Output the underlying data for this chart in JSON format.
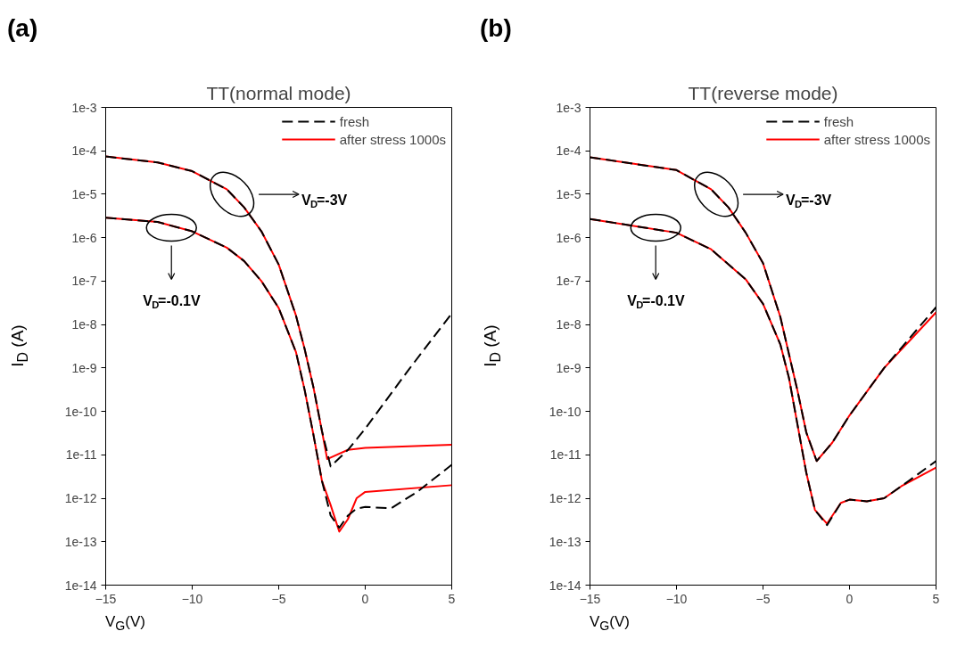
{
  "chart_data": [
    {
      "type": "line",
      "title": "TT(normal mode)",
      "xlabel": "V$_{G}$(V)",
      "ylabel": "I$_{D}$ (A)",
      "log": "y",
      "xlim": [
        -15,
        5
      ],
      "ylim": [
        1e-14,
        0.001
      ],
      "xticks": [
        -15,
        -10,
        -5,
        0,
        5
      ],
      "yticks": [
        {
          "value": 1e-14,
          "label": "1e-14"
        },
        {
          "value": 1e-13,
          "label": "1e-13"
        },
        {
          "value": 1e-12,
          "label": "1e-12"
        },
        {
          "value": 1e-11,
          "label": "1e-11"
        },
        {
          "value": 1e-10,
          "label": "1e-10"
        },
        {
          "value": 1e-09,
          "label": "1e-9"
        },
        {
          "value": 1e-08,
          "label": "1e-8"
        },
        {
          "value": 1e-07,
          "label": "1e-7"
        },
        {
          "value": 1e-06,
          "label": "1e-6"
        },
        {
          "value": 1e-05,
          "label": "1e-5"
        },
        {
          "value": 0.0001,
          "label": "1e-4"
        },
        {
          "value": 0.001,
          "label": "1e-3"
        }
      ],
      "grid": false,
      "legend": "top right",
      "annotations": [
        "(a)",
        "V$_{D}$=-3V",
        "V$_{D}$=-0.1V"
      ],
      "series": [
        {
          "name": "fresh",
          "color": "#000000",
          "line_style": "dashed",
          "x": [
            -15,
            -12,
            -10,
            -8,
            -7,
            -6,
            -5,
            -4,
            -3.5,
            -3,
            -2.5,
            -2,
            -1,
            0,
            2.5,
            5
          ],
          "values": [
            7.4e-05,
            5.4e-05,
            3.4e-05,
            1.3e-05,
            5e-06,
            1.4e-06,
            2.4e-07,
            1.6e-08,
            2.7e-09,
            3.7e-10,
            3.5e-11,
            5.4e-12,
            1.3e-11,
            4e-11,
            9e-10,
            1.8e-08
          ]
        },
        {
          "name": "after stress 1000s",
          "color": "#ff0000",
          "line_style": "solid",
          "x": [
            -15,
            -12,
            -10,
            -8,
            -7,
            -6,
            -5,
            -4,
            -3.5,
            -3,
            -2.5,
            -2.2,
            -1,
            0,
            5
          ],
          "values": [
            7.4e-05,
            5.4e-05,
            3.4e-05,
            1.3e-05,
            5e-06,
            1.4e-06,
            2.4e-07,
            1.6e-08,
            2.7e-09,
            3.7e-10,
            3.5e-11,
            8e-12,
            1.3e-11,
            1.45e-11,
            1.7e-11
          ]
        },
        {
          "color": "#000000",
          "line_style": "dashed",
          "x": [
            -15,
            -12,
            -10,
            -8,
            -7,
            -6,
            -5,
            -4,
            -3.5,
            -3,
            -2.5,
            -2,
            -1.5,
            -1,
            -0.5,
            0,
            1.5,
            3,
            5
          ],
          "values": [
            2.9e-06,
            2.3e-06,
            1.4e-06,
            5.9e-07,
            2.9e-07,
            1e-07,
            2.4e-08,
            2.3e-09,
            3.1e-10,
            3e-11,
            2.5e-12,
            4e-13,
            2.1e-13,
            4e-13,
            5.8e-13,
            6.3e-13,
            5.9e-13,
            1.4e-12,
            5.9e-12
          ]
        },
        {
          "color": "#ff0000",
          "line_style": "solid",
          "x": [
            -15,
            -12,
            -10,
            -8,
            -7,
            -6,
            -5,
            -4,
            -3.5,
            -3,
            -2.5,
            -2,
            -1.5,
            -1,
            -0.5,
            0,
            5
          ],
          "values": [
            2.9e-06,
            2.3e-06,
            1.4e-06,
            5.9e-07,
            2.9e-07,
            1e-07,
            2.4e-08,
            2.3e-09,
            3.1e-10,
            3e-11,
            2.5e-12,
            7e-13,
            1.7e-13,
            3.3e-13,
            1e-12,
            1.4e-12,
            2e-12
          ]
        }
      ]
    },
    {
      "type": "line",
      "title": "TT(reverse mode)",
      "xlabel": "V$_{G}$(V)",
      "ylabel": "I$_{D}$ (A)",
      "log": "y",
      "xlim": [
        -15,
        5
      ],
      "ylim": [
        1e-14,
        0.001
      ],
      "xticks": [
        -15,
        -10,
        -5,
        0,
        5
      ],
      "yticks": [
        {
          "value": 1e-14,
          "label": "1e-14"
        },
        {
          "value": 1e-13,
          "label": "1e-13"
        },
        {
          "value": 1e-12,
          "label": "1e-12"
        },
        {
          "value": 1e-11,
          "label": "1e-11"
        },
        {
          "value": 1e-10,
          "label": "1e-10"
        },
        {
          "value": 1e-09,
          "label": "1e-9"
        },
        {
          "value": 1e-08,
          "label": "1e-8"
        },
        {
          "value": 1e-07,
          "label": "1e-7"
        },
        {
          "value": 1e-06,
          "label": "1e-6"
        },
        {
          "value": 1e-05,
          "label": "1e-5"
        },
        {
          "value": 0.0001,
          "label": "1e-4"
        },
        {
          "value": 0.001,
          "label": "1e-3"
        }
      ],
      "grid": false,
      "legend": "top right",
      "annotations": [
        "(b)",
        "V$_{D}$=-3V",
        "V$_{D}$=-0.1V"
      ],
      "series": [
        {
          "name": "fresh",
          "color": "#000000",
          "line_style": "dashed",
          "x": [
            -15,
            -10,
            -8,
            -7,
            -6,
            -5,
            -4,
            -3,
            -2.5,
            -1.9,
            -1,
            0,
            2,
            5
          ],
          "values": [
            7.1e-05,
            3.6e-05,
            1.3e-05,
            5e-06,
            1.3e-06,
            2.6e-07,
            1.5e-08,
            2.9e-10,
            3.3e-11,
            7.2e-12,
            1.9e-11,
            8.1e-11,
            1e-09,
            2.5e-08
          ]
        },
        {
          "name": "after stress 1000s",
          "color": "#ff0000",
          "line_style": "solid",
          "x": [
            -15,
            -10,
            -8,
            -7,
            -6,
            -5,
            -4,
            -3,
            -2.5,
            -1.9,
            -1,
            0,
            2,
            5
          ],
          "values": [
            7.1e-05,
            3.6e-05,
            1.3e-05,
            5e-06,
            1.3e-06,
            2.6e-07,
            1.5e-08,
            2.9e-10,
            3.3e-11,
            7.2e-12,
            1.9e-11,
            8.1e-11,
            1e-09,
            1.9e-08
          ]
        },
        {
          "color": "#000000",
          "line_style": "dashed",
          "x": [
            -15,
            -10,
            -8,
            -6,
            -5,
            -4,
            -3.5,
            -3,
            -2.5,
            -2,
            -1.3,
            -0.5,
            0,
            1,
            2,
            3,
            5
          ],
          "values": [
            2.7e-06,
            1.3e-06,
            5.4e-07,
            1.1e-07,
            3e-08,
            3.5e-09,
            5.9e-10,
            4.8e-11,
            3.9e-12,
            5.4e-13,
            2.4e-13,
            7.8e-13,
            9.3e-13,
            8.5e-13,
            1e-12,
            1.9e-12,
            7.2e-12
          ]
        },
        {
          "color": "#ff0000",
          "line_style": "solid",
          "x": [
            -15,
            -10,
            -8,
            -6,
            -5,
            -4,
            -3.5,
            -3,
            -2.5,
            -2,
            -1.3,
            -0.5,
            0,
            1,
            2,
            3,
            5
          ],
          "values": [
            2.7e-06,
            1.3e-06,
            5.4e-07,
            1.1e-07,
            3e-08,
            3.5e-09,
            5.9e-10,
            4.8e-11,
            3.9e-12,
            5.4e-13,
            2.6e-13,
            7.8e-13,
            9.3e-13,
            8.5e-13,
            1e-12,
            1.9e-12,
            5.1e-12
          ]
        }
      ]
    }
  ]
}
